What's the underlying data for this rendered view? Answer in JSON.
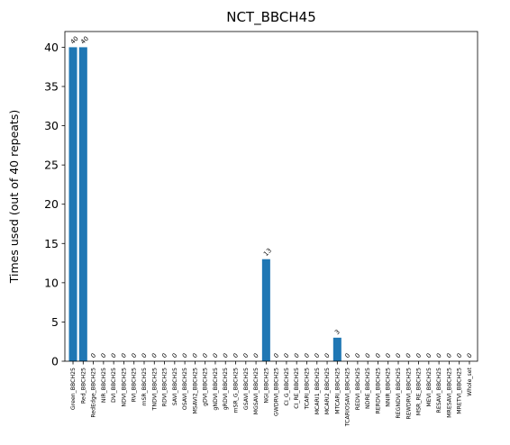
{
  "chart_data": {
    "type": "bar",
    "title": "NCT_BBCH45",
    "xlabel": "",
    "ylabel": "Times used (out of 40 repeats)",
    "ylim": [
      0,
      42
    ],
    "yticks": [
      0,
      5,
      10,
      15,
      20,
      25,
      30,
      35,
      40
    ],
    "grid": false,
    "bar_color": "#1f77b4",
    "categories": [
      "Green_BBCH25",
      "Red_BBCH25",
      "RedEdge_BBCH25",
      "NIR_BBCH25",
      "DVI_BBCH25",
      "NDVI_BBCH25",
      "RVI_BBCH25",
      "mSR_BBCH25",
      "TNDVI_BBCH25",
      "RDVI_BBCH25",
      "SAVI_BBCH25",
      "OSAVI_BBCH25",
      "MSAVI2_BBCH25",
      "gDVI_BBCH25",
      "gNDVI_BBCH25",
      "gRDVI_BBCH25",
      "mSR_G_BBCH25",
      "GSAVI_BBCH25",
      "MGSAVI_BBCH25",
      "NGI_BBCH25",
      "GWDRVI_BBCH25",
      "CI_G_BBCH25",
      "CI_RE_BBCH25",
      "TCARI_BBCH25",
      "MCARI1_BBCH25",
      "MCARI2_BBCH25",
      "MTCARI_BBCH25",
      "TCARIOSAVI_BBCH25",
      "REDVI_BBCH25",
      "NDRE_BBCH25",
      "RERDVI_BBCH25",
      "NNIR_BBCH25",
      "REGNDVI_BBCH25",
      "REWDRVI_BBCH25",
      "MSR_RE_BBCH25",
      "MEVI_BBCH25",
      "RESAVI_BBCH25",
      "MRESAVI_BBCH25",
      "MRETVI_BBCH25",
      "Whole_set"
    ],
    "values": [
      40,
      40,
      0,
      0,
      0,
      0,
      0,
      0,
      0,
      0,
      0,
      0,
      0,
      0,
      0,
      0,
      0,
      0,
      0,
      13,
      0,
      0,
      0,
      0,
      0,
      0,
      3,
      0,
      0,
      0,
      0,
      0,
      0,
      0,
      0,
      0,
      0,
      0,
      0,
      0
    ],
    "data_labels": [
      "40",
      "40",
      "0",
      "0",
      "0",
      "0",
      "0",
      "0",
      "0",
      "0",
      "0",
      "0",
      "0",
      "0",
      "0",
      "0",
      "0",
      "0",
      "0",
      "13",
      "0",
      "0",
      "0",
      "0",
      "0",
      "0",
      "3",
      "0",
      "0",
      "0",
      "0",
      "0",
      "0",
      "0",
      "0",
      "0",
      "0",
      "0",
      "0",
      "0"
    ]
  }
}
